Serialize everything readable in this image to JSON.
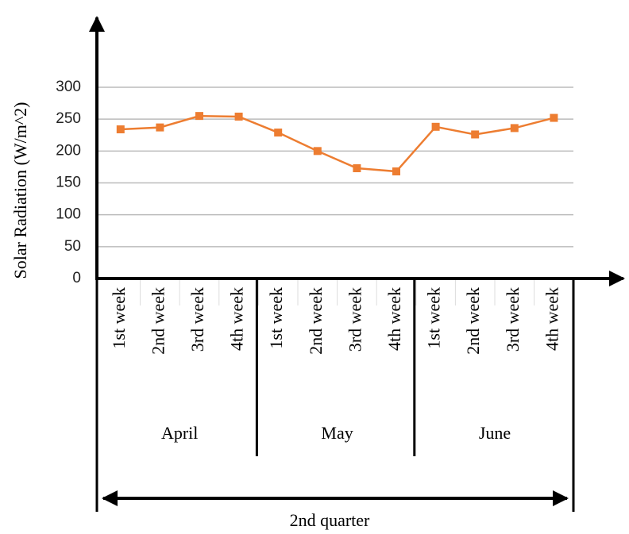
{
  "chart_data": {
    "type": "line",
    "y_label": "Solar Radiation (W/m^2)",
    "categories": [
      "1st week",
      "2nd week",
      "3rd week",
      "4th week",
      "1st week",
      "2nd week",
      "3rd week",
      "4th week",
      "1st week",
      "2nd week",
      "3rd week",
      "4th week"
    ],
    "groups": [
      {
        "label": "April",
        "size": 4
      },
      {
        "label": "May",
        "size": 4
      },
      {
        "label": "June",
        "size": 4
      }
    ],
    "group_label": "2nd quarter",
    "series": [
      {
        "name": "Solar Radiation",
        "color": "#ed7d31",
        "values": [
          234,
          237,
          255,
          254,
          229,
          200,
          173,
          168,
          238,
          226,
          236,
          252
        ]
      }
    ],
    "ylim": [
      0,
      300
    ],
    "yticks": [
      0,
      50,
      100,
      150,
      200,
      250,
      300
    ],
    "grid": true
  }
}
